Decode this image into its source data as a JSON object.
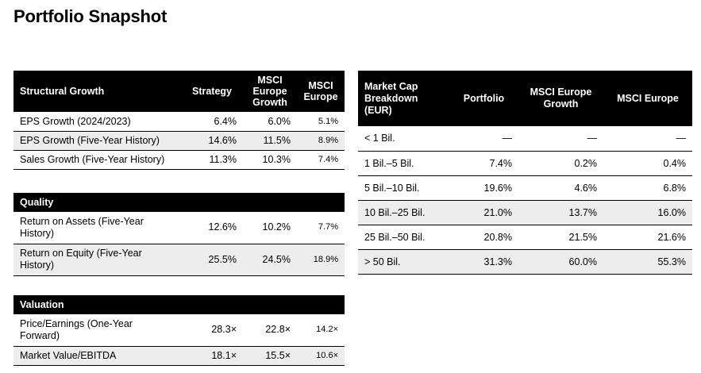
{
  "title": "Portfolio Snapshot",
  "growth": {
    "header": [
      "Structural Growth",
      "Strategy",
      "MSCI Europe Growth",
      "MSCI Europe"
    ],
    "rows": [
      [
        "EPS Growth (2024/2023)",
        "6.4%",
        "6.0%",
        "5.1%"
      ],
      [
        "EPS Growth (Five-Year History)",
        "14.6%",
        "11.5%",
        "8.9%"
      ],
      [
        "Sales Growth (Five-Year History)",
        "11.3%",
        "10.3%",
        "7.4%"
      ]
    ]
  },
  "quality": {
    "header": "Quality",
    "rows": [
      [
        "Return on Assets (Five-Year History)",
        "12.6%",
        "10.2%",
        "7.7%"
      ],
      [
        "Return on Equity (Five-Year History)",
        "25.5%",
        "24.5%",
        "18.9%"
      ]
    ]
  },
  "valuation": {
    "header": "Valuation",
    "rows": [
      [
        "Price/Earnings (One-Year Forward)",
        "28.3×",
        "22.8×",
        "14.2×"
      ],
      [
        "Market Value/EBITDA",
        "18.1×",
        "15.5×",
        "10.6×"
      ]
    ]
  },
  "market_cap": {
    "header": [
      "Market Cap Breakdown (EUR)",
      "Portfolio",
      "MSCI Europe Growth",
      "MSCI Europe"
    ],
    "rows": [
      [
        "< 1 Bil.",
        "—",
        "—",
        "—"
      ],
      [
        "1 Bil.–5 Bil.",
        "7.4%",
        "0.2%",
        "0.4%"
      ],
      [
        "5 Bil.–10 Bil.",
        "19.6%",
        "4.6%",
        "6.8%"
      ],
      [
        "10 Bil.–25 Bil.",
        "21.0%",
        "13.7%",
        "16.0%"
      ],
      [
        "25 Bil.–50 Bil.",
        "20.8%",
        "21.5%",
        "21.6%"
      ],
      [
        "> 50 Bil.",
        "31.3%",
        "60.0%",
        "55.3%"
      ]
    ]
  }
}
